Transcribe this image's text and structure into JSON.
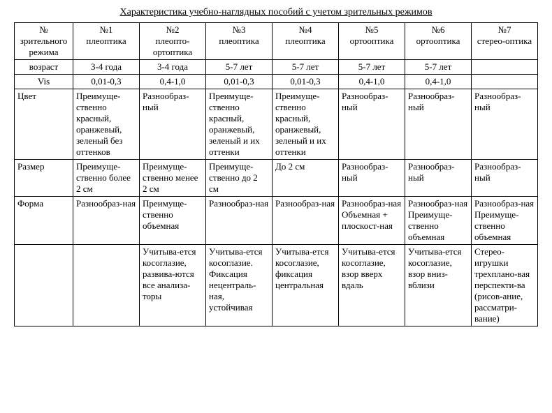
{
  "title": "Характеристика  учебно-наглядных пособий с учетом зрительных режимов",
  "columns": [
    {
      "header1": "№ зрительного режима",
      "header2": "",
      "header3": ""
    },
    {
      "header1": "№1",
      "header2": "плеоптика"
    },
    {
      "header1": "№2",
      "header2": "плеопто-ортоптика"
    },
    {
      "header1": "№3",
      "header2": "плеоптика"
    },
    {
      "header1": "№4",
      "header2": "плеоптика"
    },
    {
      "header1": "№5",
      "header2": "ортооптика"
    },
    {
      "header1": "№6",
      "header2": "ортооптика"
    },
    {
      "header1": "№7",
      "header2": "стерео-оптика"
    }
  ],
  "rows": {
    "age": {
      "label": "возраст",
      "v1": "3-4 года",
      "v2": "3-4 года",
      "v3": "5-7 лет",
      "v4": "5-7 лет",
      "v5": "5-7 лет",
      "v6": "5-7 лет",
      "v7": ""
    },
    "vis": {
      "label": "Vis",
      "v1": "0,01-0,3",
      "v2": "0,4-1,0",
      "v3": "0,01-0,3",
      "v4": "0,01-0,3",
      "v5": "0,4-1,0",
      "v6": "0,4-1,0",
      "v7": ""
    },
    "color": {
      "label": "Цвет",
      "v1": "Преимуще-ственно красный, оранжевый, зеленый без оттенков",
      "v2": "Разнообраз-ный",
      "v3": "Преимуще-ственно красный, оранжевый, зеленый и их оттенки",
      "v4": "Преимуще-ственно красный, оранжевый, зеленый и их оттенки",
      "v5": "Разнообраз-ный",
      "v6": "Разнообраз-ный",
      "v7": "Разнообраз-ный"
    },
    "size": {
      "label": "Размер",
      "v1": "Преимуще-ственно более 2 см",
      "v2": "Преимуще-ственно менее 2 см",
      "v3": "Преимуще-ственно до 2 см",
      "v4": "До 2 см",
      "v5": "Разнообраз-ный",
      "v6": "Разнообраз-ный",
      "v7": "Разнообраз-ный"
    },
    "shape": {
      "label": "Форма",
      "v1": "Разнообраз-ная",
      "v2": "Преимуще-ственно объемная",
      "v3": "Разнообраз-ная",
      "v4": "Разнообраз-ная",
      "v5": "Разнообраз-ная Объемная + плоскост-ная",
      "v6": "Разнообраз-ная Преимуще-ственно объемная",
      "v7": "Разнообраз-ная Преимуще-ственно объемная"
    },
    "extra": {
      "label": "",
      "v1": "",
      "v2": "Учитыва-ется косоглазие, развива-ются все анализа-торы",
      "v3": "Учитыва-ется косоглазие. Фиксация нецентраль-ная, устойчивая",
      "v4": "Учитыва-ется косоглазие, фиксация центральная",
      "v5": "Учитыва-ется косоглазие, взор вверх вдаль",
      "v6": "Учитыва-ется косоглазие, взор вниз-вблизи",
      "v7": "Стерео-игрушки трехплано-вая перспекти-ва (рисов-ание, рассматри-вание)"
    }
  }
}
